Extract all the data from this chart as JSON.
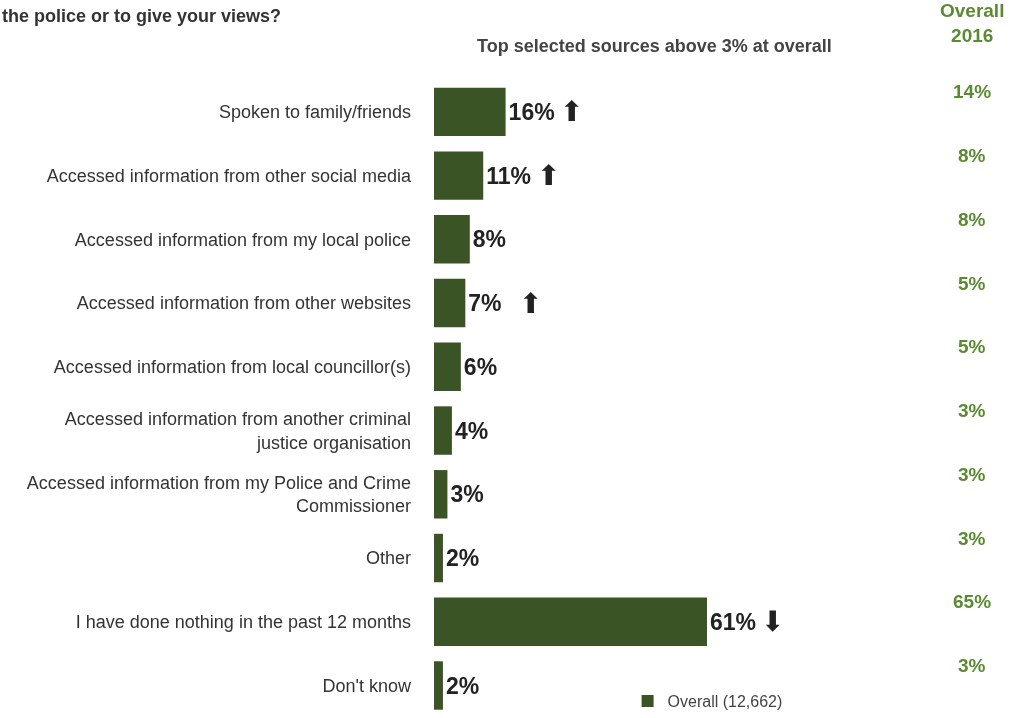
{
  "chart_data": {
    "type": "bar",
    "orientation": "horizontal",
    "title": "the police or to give your views?",
    "subtitle": "Top selected sources above 3% at overall",
    "categories": [
      "Spoken to family/friends",
      "Accessed information from other social media",
      "Accessed information from my local police",
      "Accessed information from other websites",
      "Accessed information from local councillor(s)",
      "Accessed information from another criminal justice organisation",
      "Accessed information from my Police and Crime Commissioner",
      "Other",
      "I have done nothing in the past 12 months",
      "Don't know"
    ],
    "series": [
      {
        "name": "Overall (12,662)",
        "color": "#3a5425",
        "values": [
          16,
          11,
          8,
          7,
          6,
          4,
          3,
          2,
          61,
          2
        ],
        "value_labels": [
          "16%",
          "11%",
          "8%",
          "7%",
          "6%",
          "4%",
          "3%",
          "2%",
          "61%",
          "2%"
        ]
      }
    ],
    "tick_labels": "y",
    "grid": false,
    "legend": "bottom",
    "annotations": [
      "Overall\n2016",
      "14%",
      "8%",
      "8%",
      "5%",
      "5%",
      "3%",
      "3%",
      "3%",
      "65%",
      "3%",
      {
        "text": "⬆",
        "x": 16,
        "y": "Spoken to family/friends"
      },
      {
        "text": "⬆",
        "x": 11,
        "y": "Accessed information from other social media"
      },
      {
        "text": "⬆",
        "x": 7,
        "y": "Accessed information from other websites"
      },
      {
        "text": "⬇",
        "x": 61,
        "y": "I have done nothing in the past 12 months"
      }
    ]
  }
}
